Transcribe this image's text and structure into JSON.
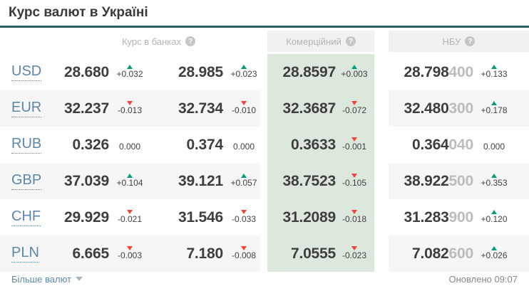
{
  "page": {
    "title": "Курс валют в Україні",
    "more_label": "Більше валют",
    "updated": "Оновлено 09:07",
    "help_glyph": "?"
  },
  "table": {
    "headers": {
      "banks": "Курс в банках",
      "commercial": "Комерційний",
      "nbu": "НБУ"
    },
    "rows": [
      {
        "code": "USD",
        "bank_buy": {
          "value": "28.680",
          "delta": "+0.032",
          "dir": "up"
        },
        "bank_sell": {
          "value": "28.985",
          "delta": "+0.023",
          "dir": "up"
        },
        "commercial": {
          "value": "28.8597",
          "delta": "+0.003",
          "dir": "up"
        },
        "nbu": {
          "value": "28.798",
          "minor": "400",
          "delta": "+0.133",
          "dir": "up"
        }
      },
      {
        "code": "EUR",
        "bank_buy": {
          "value": "32.237",
          "delta": "-0.013",
          "dir": "down"
        },
        "bank_sell": {
          "value": "32.734",
          "delta": "-0.010",
          "dir": "down"
        },
        "commercial": {
          "value": "32.3687",
          "delta": "-0.072",
          "dir": "down"
        },
        "nbu": {
          "value": "32.480",
          "minor": "300",
          "delta": "+0.178",
          "dir": "up"
        }
      },
      {
        "code": "RUB",
        "bank_buy": {
          "value": "0.326",
          "delta": "0.000",
          "dir": "none"
        },
        "bank_sell": {
          "value": "0.374",
          "delta": "0.000",
          "dir": "none"
        },
        "commercial": {
          "value": "0.3633",
          "delta": "-0.001",
          "dir": "down"
        },
        "nbu": {
          "value": "0.364",
          "minor": "040",
          "delta": "0.000",
          "dir": "none"
        }
      },
      {
        "code": "GBP",
        "bank_buy": {
          "value": "37.039",
          "delta": "+0.104",
          "dir": "up"
        },
        "bank_sell": {
          "value": "39.121",
          "delta": "+0.057",
          "dir": "up"
        },
        "commercial": {
          "value": "38.7523",
          "delta": "-0.105",
          "dir": "down"
        },
        "nbu": {
          "value": "38.922",
          "minor": "500",
          "delta": "+0.353",
          "dir": "up"
        }
      },
      {
        "code": "CHF",
        "bank_buy": {
          "value": "29.929",
          "delta": "-0.021",
          "dir": "down"
        },
        "bank_sell": {
          "value": "31.546",
          "delta": "-0.033",
          "dir": "down"
        },
        "commercial": {
          "value": "31.2089",
          "delta": "-0.018",
          "dir": "down"
        },
        "nbu": {
          "value": "31.283",
          "minor": "900",
          "delta": "+0.120",
          "dir": "up"
        }
      },
      {
        "code": "PLN",
        "bank_buy": {
          "value": "6.665",
          "delta": "-0.003",
          "dir": "down"
        },
        "bank_sell": {
          "value": "7.180",
          "delta": "-0.008",
          "dir": "down"
        },
        "commercial": {
          "value": "7.0555",
          "delta": "-0.023",
          "dir": "down"
        },
        "nbu": {
          "value": "7.082",
          "minor": "600",
          "delta": "+0.026",
          "dir": "up"
        }
      }
    ]
  },
  "colors": {
    "accent_teal": "#2b6065",
    "up_arrow": "#0b9a80",
    "down_arrow": "#ef4438",
    "commercial_bg": "#dde8dc",
    "row_alt_bg": "#f6f6f6",
    "header_bg": "#f1f1f1",
    "link_blue": "#5d87aa"
  }
}
